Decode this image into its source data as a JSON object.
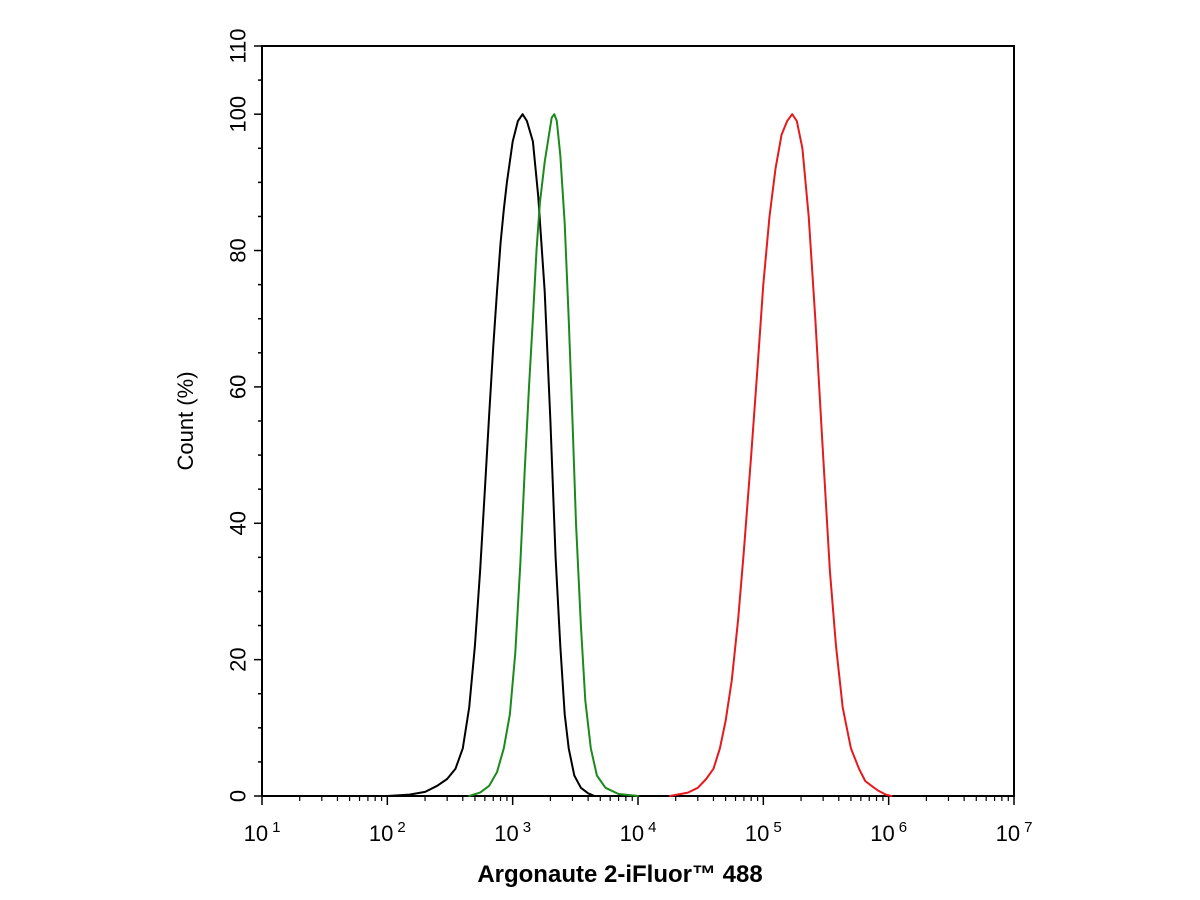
{
  "chart_data": {
    "type": "line",
    "xlabel": "Argonaute 2-iFluor™ 488",
    "ylabel": "Count  (%)",
    "x_scale": "log10",
    "xlim": [
      10,
      10000000
    ],
    "ylim": [
      0,
      110
    ],
    "grid": false,
    "x_ticks": [
      {
        "base": "10",
        "exp": "1",
        "value": 10
      },
      {
        "base": "10",
        "exp": "2",
        "value": 100
      },
      {
        "base": "10",
        "exp": "3",
        "value": 1000
      },
      {
        "base": "10",
        "exp": "4",
        "value": 10000
      },
      {
        "base": "10",
        "exp": "5",
        "value": 100000
      },
      {
        "base": "10",
        "exp": "6",
        "value": 1000000
      },
      {
        "base": "10",
        "exp": "7",
        "value": 10000000
      }
    ],
    "y_ticks": [
      "0",
      "20",
      "40",
      "60",
      "80",
      "100",
      "110"
    ],
    "y_tick_values": [
      0,
      20,
      40,
      60,
      80,
      100,
      110
    ],
    "series": [
      {
        "color": "#000000",
        "points": [
          [
            100,
            0
          ],
          [
            150,
            0.2
          ],
          [
            200,
            0.6
          ],
          [
            250,
            1.5
          ],
          [
            300,
            2.5
          ],
          [
            350,
            4
          ],
          [
            400,
            7
          ],
          [
            450,
            13
          ],
          [
            500,
            22
          ],
          [
            550,
            33
          ],
          [
            600,
            45
          ],
          [
            650,
            56
          ],
          [
            700,
            66
          ],
          [
            750,
            74
          ],
          [
            800,
            81
          ],
          [
            850,
            86
          ],
          [
            900,
            90
          ],
          [
            1000,
            96
          ],
          [
            1100,
            99
          ],
          [
            1200,
            100
          ],
          [
            1300,
            99
          ],
          [
            1450,
            96
          ],
          [
            1600,
            88
          ],
          [
            1800,
            74
          ],
          [
            2000,
            55
          ],
          [
            2200,
            35
          ],
          [
            2400,
            22
          ],
          [
            2600,
            12
          ],
          [
            2800,
            7
          ],
          [
            3100,
            3
          ],
          [
            3500,
            1.2
          ],
          [
            4000,
            0.4
          ],
          [
            4500,
            0
          ]
        ]
      },
      {
        "color": "#1a8a1a",
        "points": [
          [
            450,
            0
          ],
          [
            550,
            0.5
          ],
          [
            650,
            1.5
          ],
          [
            750,
            3.5
          ],
          [
            850,
            7
          ],
          [
            950,
            12
          ],
          [
            1050,
            21
          ],
          [
            1150,
            34
          ],
          [
            1250,
            48
          ],
          [
            1350,
            60
          ],
          [
            1450,
            70
          ],
          [
            1550,
            80
          ],
          [
            1650,
            87
          ],
          [
            1800,
            93
          ],
          [
            1950,
            97
          ],
          [
            2050,
            99.5
          ],
          [
            2150,
            100
          ],
          [
            2250,
            99
          ],
          [
            2400,
            94
          ],
          [
            2600,
            84
          ],
          [
            2800,
            70
          ],
          [
            3000,
            55
          ],
          [
            3200,
            40
          ],
          [
            3500,
            25
          ],
          [
            3800,
            14
          ],
          [
            4200,
            7
          ],
          [
            4700,
            3
          ],
          [
            5500,
            1.2
          ],
          [
            7000,
            0.3
          ],
          [
            10000,
            0
          ]
        ]
      },
      {
        "color": "#e41a1c",
        "points": [
          [
            18000,
            0
          ],
          [
            25000,
            0.5
          ],
          [
            30000,
            1.2
          ],
          [
            35000,
            2.5
          ],
          [
            40000,
            4
          ],
          [
            45000,
            7
          ],
          [
            50000,
            11
          ],
          [
            56000,
            17
          ],
          [
            63000,
            26
          ],
          [
            70000,
            36
          ],
          [
            80000,
            50
          ],
          [
            90000,
            63
          ],
          [
            100000,
            75
          ],
          [
            112000,
            85
          ],
          [
            125000,
            92
          ],
          [
            140000,
            97
          ],
          [
            155000,
            99
          ],
          [
            170000,
            100
          ],
          [
            185000,
            99
          ],
          [
            205000,
            95
          ],
          [
            230000,
            85
          ],
          [
            260000,
            70
          ],
          [
            300000,
            50
          ],
          [
            340000,
            33
          ],
          [
            380000,
            22
          ],
          [
            430000,
            13
          ],
          [
            500000,
            7
          ],
          [
            580000,
            4
          ],
          [
            650000,
            2.2
          ],
          [
            730000,
            1.5
          ],
          [
            820000,
            0.8
          ],
          [
            950000,
            0.2
          ],
          [
            1050000,
            0
          ]
        ]
      }
    ]
  }
}
